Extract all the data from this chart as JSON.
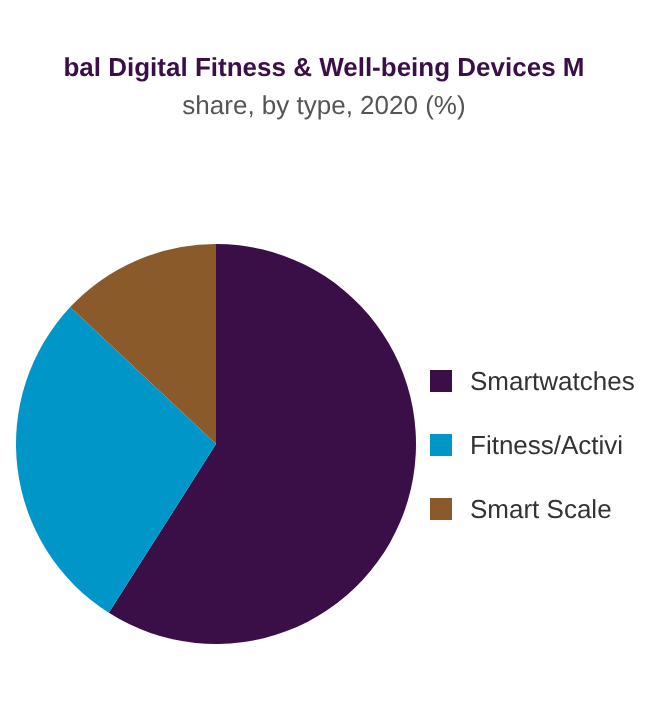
{
  "chart_data": {
    "type": "pie",
    "title": "bal Digital Fitness & Well-being Devices M",
    "subtitle": "share, by type, 2020 (%)",
    "categories": [
      "Smartwatches",
      "Fitness/Activi",
      "Smart Scale"
    ],
    "values": [
      59,
      28,
      13
    ],
    "colors": [
      "#3a0f47",
      "#0096c7",
      "#8b5a2b"
    ],
    "legend": "right"
  }
}
